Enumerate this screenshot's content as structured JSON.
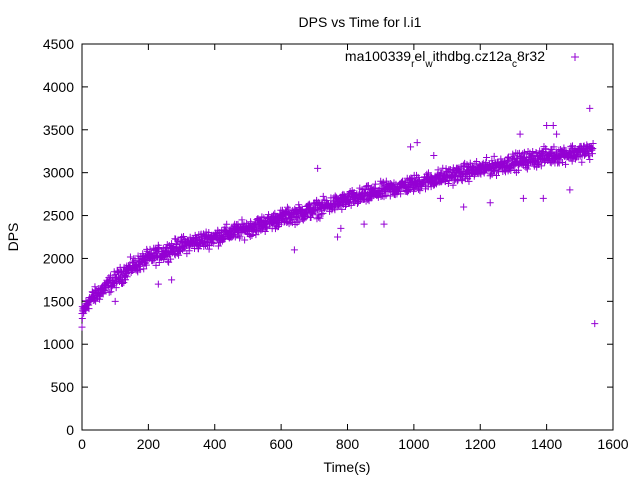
{
  "chart_data": {
    "type": "scatter",
    "title": "DPS vs Time for l.i1",
    "xlabel": "Time(s)",
    "ylabel": "DPS",
    "xlim": [
      0,
      1600
    ],
    "ylim": [
      0,
      4500
    ],
    "x_ticks": [
      "0",
      "200",
      "400",
      "600",
      "800",
      "1000",
      "1200",
      "1400",
      "1600"
    ],
    "y_ticks": [
      "0",
      "500",
      "1000",
      "1500",
      "2000",
      "2500",
      "3000",
      "3500",
      "4000",
      "4500"
    ],
    "grid": false,
    "legend_position": "top-right",
    "series": [
      {
        "name": "ma100339_rel_withdbg.cz12a_c8r32",
        "legend_parts": [
          {
            "text": "ma100339",
            "sub": false
          },
          {
            "text": "r",
            "sub": true
          },
          {
            "text": "el",
            "sub": false
          },
          {
            "text": "w",
            "sub": true
          },
          {
            "text": "ithdbg.cz12a",
            "sub": false
          },
          {
            "text": "c",
            "sub": true
          },
          {
            "text": "8r32",
            "sub": false
          }
        ],
        "color": "#9400d3",
        "marker": "+",
        "trend": [
          [
            0,
            1350
          ],
          [
            20,
            1500
          ],
          [
            50,
            1600
          ],
          [
            100,
            1750
          ],
          [
            150,
            1900
          ],
          [
            200,
            2000
          ],
          [
            300,
            2150
          ],
          [
            400,
            2250
          ],
          [
            500,
            2350
          ],
          [
            600,
            2470
          ],
          [
            700,
            2570
          ],
          [
            800,
            2680
          ],
          [
            900,
            2780
          ],
          [
            1000,
            2870
          ],
          [
            1100,
            2960
          ],
          [
            1200,
            3040
          ],
          [
            1300,
            3120
          ],
          [
            1400,
            3190
          ],
          [
            1500,
            3240
          ],
          [
            1540,
            3260
          ]
        ],
        "spread": 90,
        "x_start": 0,
        "x_end": 1540,
        "x_step": 1,
        "outliers": [
          [
            0,
            1200
          ],
          [
            1,
            1300
          ],
          [
            3,
            1410
          ],
          [
            100,
            1500
          ],
          [
            230,
            1700
          ],
          [
            270,
            1750
          ],
          [
            640,
            2100
          ],
          [
            710,
            3050
          ],
          [
            770,
            2250
          ],
          [
            780,
            2350
          ],
          [
            850,
            2400
          ],
          [
            910,
            2400
          ],
          [
            990,
            3300
          ],
          [
            1010,
            3350
          ],
          [
            1060,
            3200
          ],
          [
            1080,
            2700
          ],
          [
            1150,
            2600
          ],
          [
            1230,
            2650
          ],
          [
            1320,
            3450
          ],
          [
            1330,
            2700
          ],
          [
            1390,
            2700
          ],
          [
            1400,
            3550
          ],
          [
            1420,
            3550
          ],
          [
            1430,
            3450
          ],
          [
            1470,
            2800
          ],
          [
            1530,
            3750
          ],
          [
            1545,
            1240
          ]
        ]
      }
    ]
  }
}
